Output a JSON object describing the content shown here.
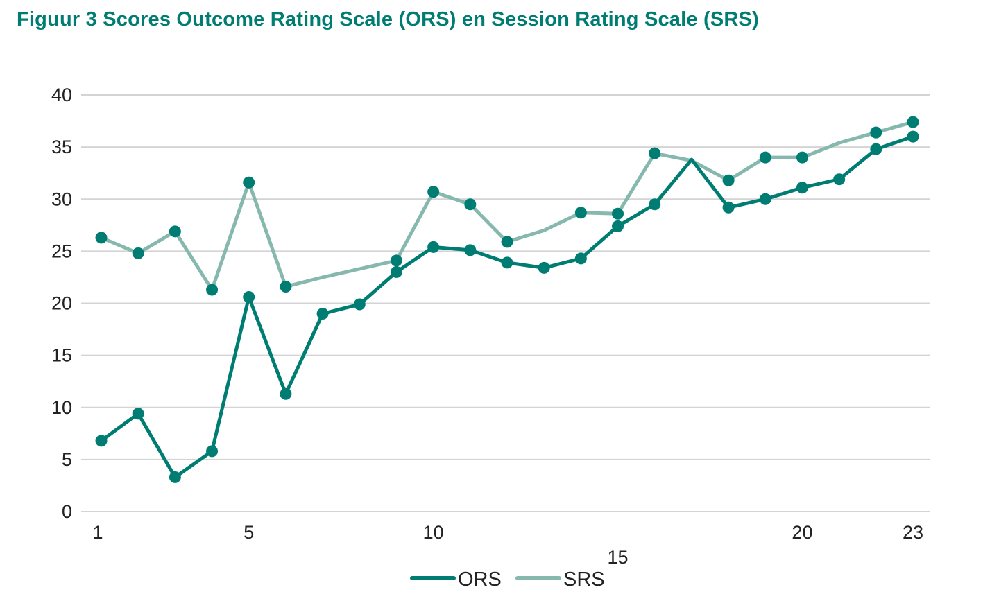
{
  "chart_data": {
    "type": "line",
    "title": "Figuur 3 Scores Outcome Rating Scale (ORS) en Session Rating Scale (SRS)",
    "xlabel": "",
    "ylabel": "",
    "x": [
      1,
      2,
      3,
      4,
      5,
      6,
      7,
      8,
      9,
      10,
      11,
      12,
      13,
      14,
      15,
      16,
      17,
      18,
      19,
      20,
      21,
      22,
      23
    ],
    "x_tick_labels": [
      "1",
      "5",
      "10",
      "15",
      "20",
      "23"
    ],
    "x_ticks": [
      1,
      5,
      10,
      15,
      20,
      23
    ],
    "ylim": [
      0,
      40
    ],
    "y_ticks": [
      0,
      5,
      10,
      15,
      20,
      25,
      30,
      35,
      40
    ],
    "grid": "horizontal",
    "legend_position": "bottom-center",
    "series": [
      {
        "name": "ORS",
        "color": "#007d73",
        "values": [
          6.8,
          9.4,
          3.3,
          5.8,
          20.6,
          11.3,
          19.0,
          19.9,
          23.0,
          25.4,
          25.1,
          23.9,
          23.4,
          24.3,
          27.4,
          29.5,
          33.8,
          29.2,
          30.0,
          31.1,
          31.9,
          34.8,
          36.0
        ],
        "markers": [
          true,
          true,
          true,
          true,
          true,
          true,
          true,
          true,
          true,
          true,
          true,
          true,
          true,
          true,
          true,
          true,
          false,
          true,
          true,
          true,
          true,
          true,
          true
        ]
      },
      {
        "name": "SRS",
        "color": "#86b8ae",
        "values": [
          26.3,
          24.8,
          26.9,
          21.3,
          31.6,
          21.6,
          22.5,
          23.3,
          24.1,
          30.7,
          29.5,
          25.9,
          27.0,
          28.7,
          28.6,
          34.4,
          33.7,
          31.8,
          34.0,
          34.0,
          35.4,
          36.4,
          37.4
        ],
        "markers": [
          true,
          true,
          true,
          true,
          true,
          true,
          false,
          false,
          true,
          true,
          true,
          true,
          false,
          true,
          true,
          true,
          false,
          true,
          true,
          true,
          false,
          true,
          true
        ]
      }
    ]
  }
}
